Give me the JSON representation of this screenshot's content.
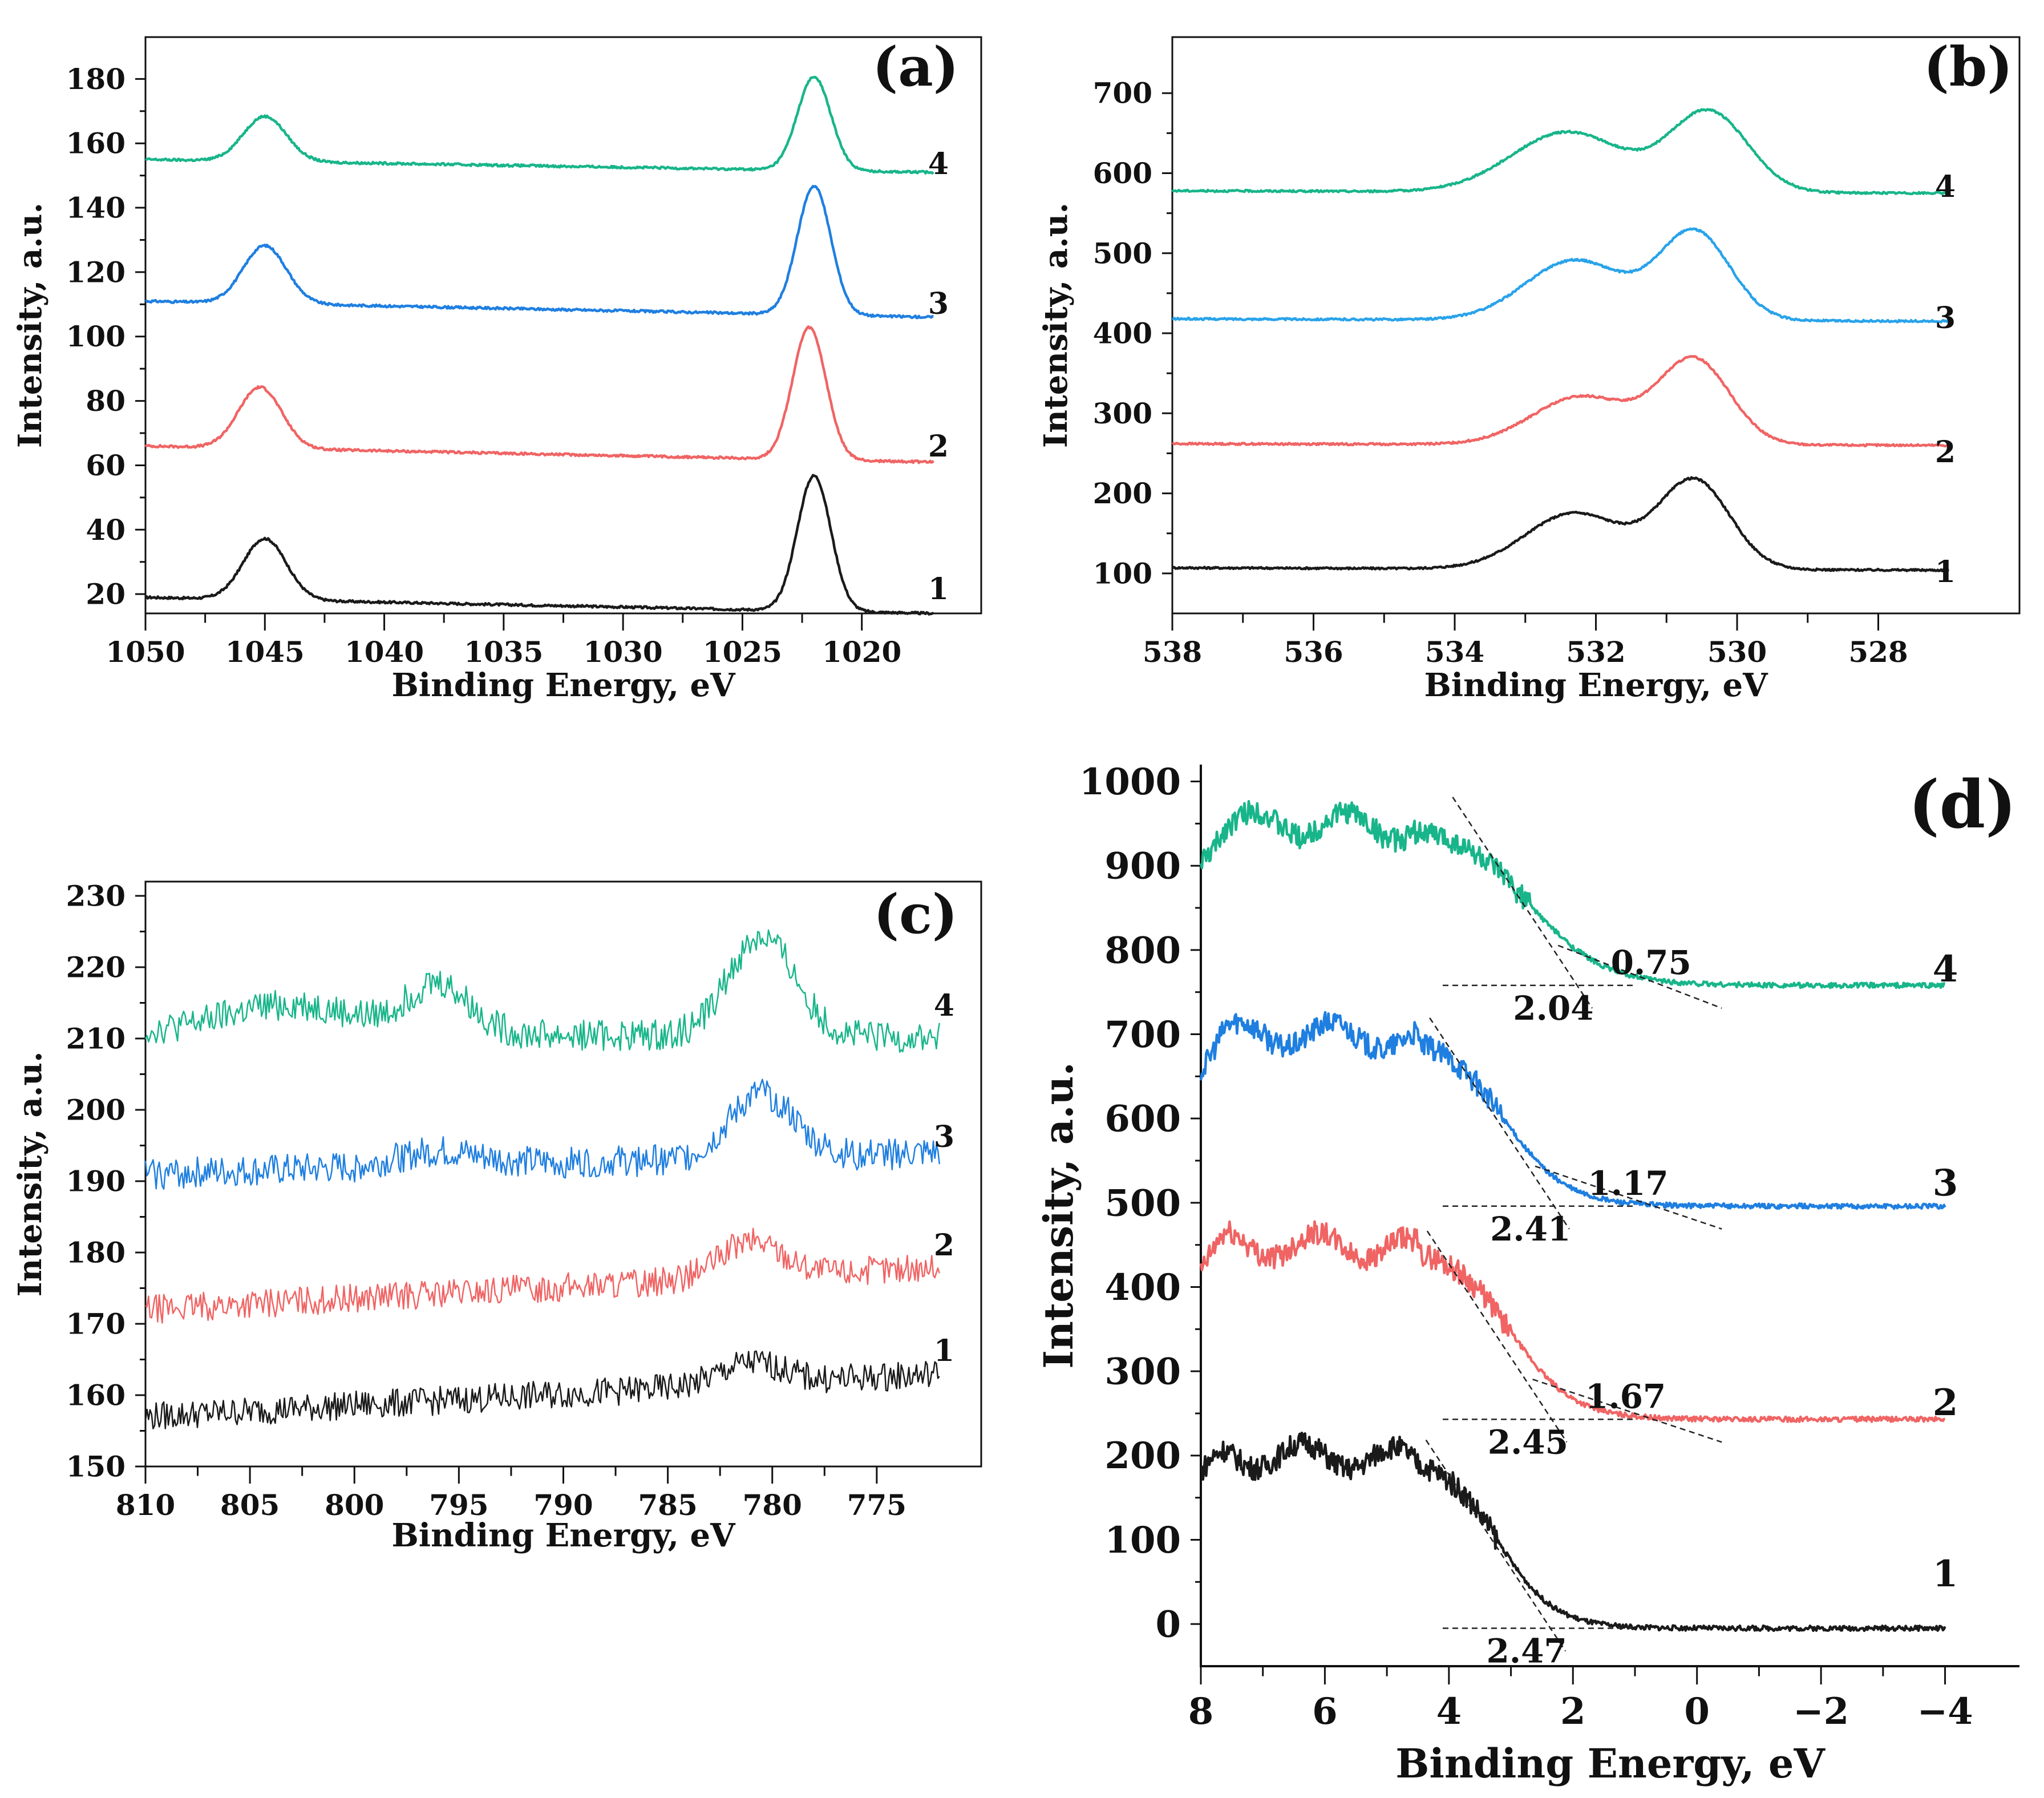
{
  "colors": {
    "s1": "#1a1a1a",
    "s2": "#f06464",
    "s3": "#1f7fe0",
    "s4": "#18b58a",
    "s3b": "#29a3ea",
    "axis": "#111111",
    "guide": "#222222"
  },
  "chart_data": [
    {
      "type": "line",
      "panel_label": "(a)",
      "xlabel": "Binding Energy, eV",
      "ylabel": "Intensity, a.u.",
      "xlim": [
        1050,
        1015
      ],
      "ylim": [
        14,
        193
      ],
      "xticks": [
        1050,
        1045,
        1040,
        1035,
        1030,
        1025,
        1020
      ],
      "yticks": [
        20,
        40,
        60,
        80,
        100,
        120,
        140,
        160,
        180
      ],
      "series": [
        {
          "name": "1",
          "baseline_start": 19,
          "baseline_end": 14,
          "peaks": [
            {
              "center": 1045.0,
              "height": 19,
              "width": 0.9
            },
            {
              "center": 1022.0,
              "height": 42,
              "width": 0.7
            }
          ]
        },
        {
          "name": "2",
          "baseline_start": 66,
          "baseline_end": 61,
          "peaks": [
            {
              "center": 1045.2,
              "height": 19,
              "width": 0.9
            },
            {
              "center": 1022.2,
              "height": 41,
              "width": 0.7
            }
          ]
        },
        {
          "name": "3",
          "baseline_start": 111,
          "baseline_end": 106,
          "peaks": [
            {
              "center": 1045.0,
              "height": 18,
              "width": 0.9
            },
            {
              "center": 1022.0,
              "height": 40,
              "width": 0.7
            }
          ]
        },
        {
          "name": "4",
          "baseline_start": 155,
          "baseline_end": 151,
          "peaks": [
            {
              "center": 1045.0,
              "height": 14,
              "width": 0.9
            },
            {
              "center": 1022.0,
              "height": 29,
              "width": 0.7
            }
          ]
        }
      ],
      "curve_labels": [
        "1",
        "2",
        "3",
        "4"
      ],
      "x_end": 1017
    },
    {
      "type": "line",
      "panel_label": "(b)",
      "xlabel": "Binding Energy, eV",
      "ylabel": "Intensity, a.u.",
      "xlim": [
        538,
        526
      ],
      "ylim": [
        50,
        770
      ],
      "xticks": [
        538,
        536,
        534,
        532,
        530,
        528
      ],
      "yticks": [
        100,
        200,
        300,
        400,
        500,
        600,
        700
      ],
      "series": [
        {
          "name": "1",
          "baseline_start": 107,
          "baseline_end": 104,
          "peaks": [
            {
              "center": 530.6,
              "height": 110,
              "width": 0.5
            },
            {
              "center": 532.3,
              "height": 70,
              "width": 0.7
            }
          ]
        },
        {
          "name": "2",
          "baseline_start": 262,
          "baseline_end": 260,
          "peaks": [
            {
              "center": 530.6,
              "height": 105,
              "width": 0.5
            },
            {
              "center": 532.2,
              "height": 60,
              "width": 0.7
            }
          ]
        },
        {
          "name": "3",
          "baseline_start": 418,
          "baseline_end": 415,
          "peaks": [
            {
              "center": 530.6,
              "height": 110,
              "width": 0.5
            },
            {
              "center": 532.3,
              "height": 75,
              "width": 0.7
            }
          ]
        },
        {
          "name": "4",
          "baseline_start": 578,
          "baseline_end": 575,
          "peaks": [
            {
              "center": 530.4,
              "height": 100,
              "width": 0.55
            },
            {
              "center": 532.4,
              "height": 75,
              "width": 0.8
            }
          ]
        }
      ],
      "curve_labels": [
        "1",
        "2",
        "3",
        "4"
      ],
      "x_end": 527
    },
    {
      "type": "line",
      "panel_label": "(c)",
      "xlabel": "Binding Energy, eV",
      "ylabel": "Intensity, a.u.",
      "xlim": [
        810,
        770
      ],
      "ylim": [
        150,
        232
      ],
      "xticks": [
        810,
        805,
        800,
        795,
        790,
        785,
        780,
        775
      ],
      "yticks": [
        150,
        160,
        170,
        180,
        190,
        200,
        210,
        220,
        230
      ],
      "series": [
        {
          "name": "1",
          "baseline_start": 157,
          "baseline_end": 163,
          "noise": 2.0,
          "peaks": [
            {
              "center": 781,
              "height": 3,
              "width": 1.5
            }
          ]
        },
        {
          "name": "2",
          "baseline_start": 172,
          "baseline_end": 178,
          "noise": 2.0,
          "peaks": [
            {
              "center": 781,
              "height": 5,
              "width": 1.5
            }
          ]
        },
        {
          "name": "3",
          "baseline_start": 191,
          "baseline_end": 194,
          "noise": 2.2,
          "peaks": [
            {
              "center": 780.5,
              "height": 9,
              "width": 1.5
            },
            {
              "center": 796,
              "height": 2,
              "width": 2
            }
          ]
        },
        {
          "name": "4",
          "baseline_start": 211,
          "baseline_end": 210,
          "noise": 2.2,
          "peaks": [
            {
              "center": 780.5,
              "height": 14,
              "width": 1.6
            },
            {
              "center": 796,
              "height": 7,
              "width": 1.5
            },
            {
              "center": 803,
              "height": 4,
              "width": 3
            }
          ]
        }
      ],
      "curve_labels": [
        "1",
        "2",
        "3",
        "4"
      ],
      "x_end": 772
    },
    {
      "type": "line",
      "panel_label": "(d)",
      "xlabel": "Binding Energy, eV",
      "ylabel": "Intensity, a.u.",
      "xlim": [
        8,
        -5.2
      ],
      "ylim": [
        -50,
        1020
      ],
      "xticks": [
        8,
        6,
        4,
        2,
        0,
        -2,
        -4
      ],
      "xtick_labels": [
        "8",
        "6",
        "4",
        "2",
        "0",
        "−2",
        "−4"
      ],
      "yticks": [
        0,
        100,
        200,
        300,
        400,
        500,
        600,
        700,
        800,
        900,
        1000
      ],
      "series": [
        {
          "name": "1",
          "plateau": 200,
          "base": -5,
          "edge_center": 3.2,
          "edge_width": 0.45
        },
        {
          "name": "2",
          "plateau": 450,
          "base": 243,
          "edge_center": 3.0,
          "edge_width": 0.5
        },
        {
          "name": "3",
          "plateau": 700,
          "base": 496,
          "edge_center": 3.1,
          "edge_width": 0.5
        },
        {
          "name": "4",
          "plateau": 950,
          "base": 758,
          "edge_center": 2.7,
          "edge_width": 0.6
        }
      ],
      "curve_labels": [
        "1",
        "2",
        "3",
        "4"
      ],
      "x_end": -4,
      "band_edges": [
        {
          "series": "1",
          "value": "2.47",
          "intercept": 2.47,
          "extra": null
        },
        {
          "series": "2",
          "value": "2.45",
          "intercept": 2.45,
          "extra": "1.67"
        },
        {
          "series": "3",
          "value": "2.41",
          "intercept": 2.41,
          "extra": "1.17"
        },
        {
          "series": "4",
          "value": "2.04",
          "intercept": 2.04,
          "extra": "0.75"
        }
      ]
    }
  ]
}
